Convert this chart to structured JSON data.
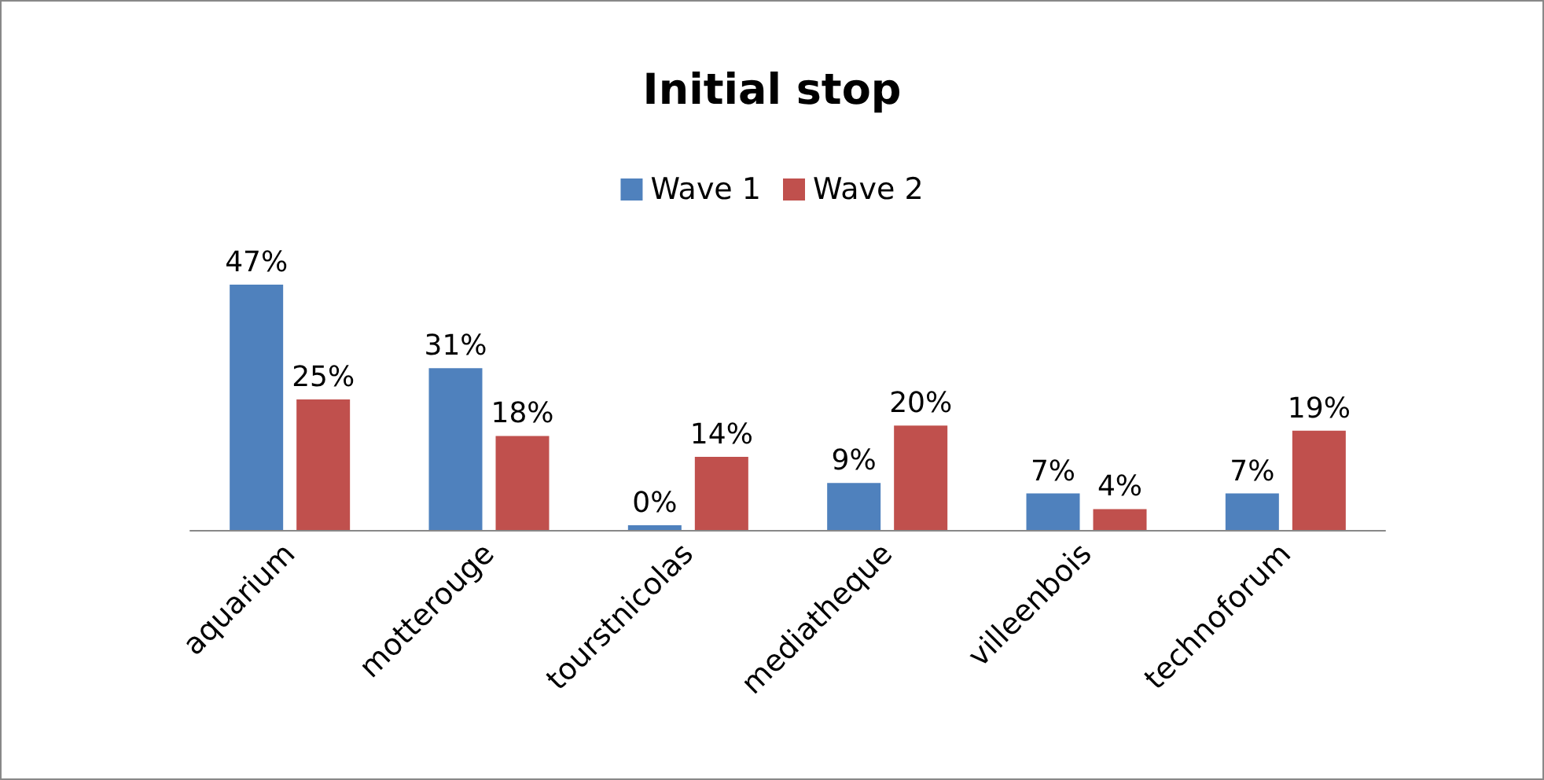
{
  "chart_data": {
    "type": "bar",
    "title": "Initial stop",
    "categories": [
      "aquarium",
      "motterouge",
      "tourstnicolas",
      "mediatheque",
      "villeenbois",
      "technoforum"
    ],
    "series": [
      {
        "name": "Wave 1",
        "color": "#4f81bd",
        "values": [
          47,
          31,
          0,
          9,
          7,
          7
        ],
        "value_labels": [
          "47%",
          "31%",
          "0%",
          "9%",
          "7%",
          "7%"
        ]
      },
      {
        "name": "Wave 2",
        "color": "#c0504d",
        "values": [
          25,
          18,
          14,
          20,
          4,
          19
        ],
        "value_labels": [
          "25%",
          "18%",
          "14%",
          "20%",
          "4%",
          "19%"
        ]
      }
    ],
    "legend": "top"
  }
}
